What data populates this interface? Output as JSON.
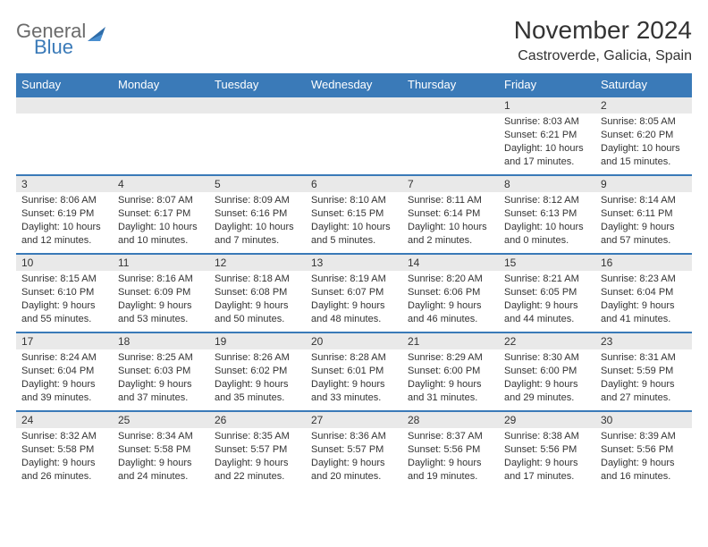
{
  "brand": {
    "word1": "General",
    "word2": "Blue"
  },
  "title": "November 2024",
  "location": "Castroverde, Galicia, Spain",
  "colors": {
    "header_bg": "#3a7ab8",
    "header_text": "#ffffff",
    "daynum_bg": "#e9e9e9",
    "border": "#3a7ab8",
    "text": "#333333",
    "logo_gray": "#6b6b6b",
    "logo_blue": "#3a7ab8",
    "page_bg": "#ffffff"
  },
  "typography": {
    "title_fontsize": 28,
    "location_fontsize": 16,
    "dayhead_fontsize": 13,
    "daynum_fontsize": 12,
    "body_fontsize": 11
  },
  "day_headers": [
    "Sunday",
    "Monday",
    "Tuesday",
    "Wednesday",
    "Thursday",
    "Friday",
    "Saturday"
  ],
  "weeks": [
    [
      {
        "n": "",
        "sunrise": "",
        "sunset": "",
        "daylight": ""
      },
      {
        "n": "",
        "sunrise": "",
        "sunset": "",
        "daylight": ""
      },
      {
        "n": "",
        "sunrise": "",
        "sunset": "",
        "daylight": ""
      },
      {
        "n": "",
        "sunrise": "",
        "sunset": "",
        "daylight": ""
      },
      {
        "n": "",
        "sunrise": "",
        "sunset": "",
        "daylight": ""
      },
      {
        "n": "1",
        "sunrise": "Sunrise: 8:03 AM",
        "sunset": "Sunset: 6:21 PM",
        "daylight": "Daylight: 10 hours and 17 minutes."
      },
      {
        "n": "2",
        "sunrise": "Sunrise: 8:05 AM",
        "sunset": "Sunset: 6:20 PM",
        "daylight": "Daylight: 10 hours and 15 minutes."
      }
    ],
    [
      {
        "n": "3",
        "sunrise": "Sunrise: 8:06 AM",
        "sunset": "Sunset: 6:19 PM",
        "daylight": "Daylight: 10 hours and 12 minutes."
      },
      {
        "n": "4",
        "sunrise": "Sunrise: 8:07 AM",
        "sunset": "Sunset: 6:17 PM",
        "daylight": "Daylight: 10 hours and 10 minutes."
      },
      {
        "n": "5",
        "sunrise": "Sunrise: 8:09 AM",
        "sunset": "Sunset: 6:16 PM",
        "daylight": "Daylight: 10 hours and 7 minutes."
      },
      {
        "n": "6",
        "sunrise": "Sunrise: 8:10 AM",
        "sunset": "Sunset: 6:15 PM",
        "daylight": "Daylight: 10 hours and 5 minutes."
      },
      {
        "n": "7",
        "sunrise": "Sunrise: 8:11 AM",
        "sunset": "Sunset: 6:14 PM",
        "daylight": "Daylight: 10 hours and 2 minutes."
      },
      {
        "n": "8",
        "sunrise": "Sunrise: 8:12 AM",
        "sunset": "Sunset: 6:13 PM",
        "daylight": "Daylight: 10 hours and 0 minutes."
      },
      {
        "n": "9",
        "sunrise": "Sunrise: 8:14 AM",
        "sunset": "Sunset: 6:11 PM",
        "daylight": "Daylight: 9 hours and 57 minutes."
      }
    ],
    [
      {
        "n": "10",
        "sunrise": "Sunrise: 8:15 AM",
        "sunset": "Sunset: 6:10 PM",
        "daylight": "Daylight: 9 hours and 55 minutes."
      },
      {
        "n": "11",
        "sunrise": "Sunrise: 8:16 AM",
        "sunset": "Sunset: 6:09 PM",
        "daylight": "Daylight: 9 hours and 53 minutes."
      },
      {
        "n": "12",
        "sunrise": "Sunrise: 8:18 AM",
        "sunset": "Sunset: 6:08 PM",
        "daylight": "Daylight: 9 hours and 50 minutes."
      },
      {
        "n": "13",
        "sunrise": "Sunrise: 8:19 AM",
        "sunset": "Sunset: 6:07 PM",
        "daylight": "Daylight: 9 hours and 48 minutes."
      },
      {
        "n": "14",
        "sunrise": "Sunrise: 8:20 AM",
        "sunset": "Sunset: 6:06 PM",
        "daylight": "Daylight: 9 hours and 46 minutes."
      },
      {
        "n": "15",
        "sunrise": "Sunrise: 8:21 AM",
        "sunset": "Sunset: 6:05 PM",
        "daylight": "Daylight: 9 hours and 44 minutes."
      },
      {
        "n": "16",
        "sunrise": "Sunrise: 8:23 AM",
        "sunset": "Sunset: 6:04 PM",
        "daylight": "Daylight: 9 hours and 41 minutes."
      }
    ],
    [
      {
        "n": "17",
        "sunrise": "Sunrise: 8:24 AM",
        "sunset": "Sunset: 6:04 PM",
        "daylight": "Daylight: 9 hours and 39 minutes."
      },
      {
        "n": "18",
        "sunrise": "Sunrise: 8:25 AM",
        "sunset": "Sunset: 6:03 PM",
        "daylight": "Daylight: 9 hours and 37 minutes."
      },
      {
        "n": "19",
        "sunrise": "Sunrise: 8:26 AM",
        "sunset": "Sunset: 6:02 PM",
        "daylight": "Daylight: 9 hours and 35 minutes."
      },
      {
        "n": "20",
        "sunrise": "Sunrise: 8:28 AM",
        "sunset": "Sunset: 6:01 PM",
        "daylight": "Daylight: 9 hours and 33 minutes."
      },
      {
        "n": "21",
        "sunrise": "Sunrise: 8:29 AM",
        "sunset": "Sunset: 6:00 PM",
        "daylight": "Daylight: 9 hours and 31 minutes."
      },
      {
        "n": "22",
        "sunrise": "Sunrise: 8:30 AM",
        "sunset": "Sunset: 6:00 PM",
        "daylight": "Daylight: 9 hours and 29 minutes."
      },
      {
        "n": "23",
        "sunrise": "Sunrise: 8:31 AM",
        "sunset": "Sunset: 5:59 PM",
        "daylight": "Daylight: 9 hours and 27 minutes."
      }
    ],
    [
      {
        "n": "24",
        "sunrise": "Sunrise: 8:32 AM",
        "sunset": "Sunset: 5:58 PM",
        "daylight": "Daylight: 9 hours and 26 minutes."
      },
      {
        "n": "25",
        "sunrise": "Sunrise: 8:34 AM",
        "sunset": "Sunset: 5:58 PM",
        "daylight": "Daylight: 9 hours and 24 minutes."
      },
      {
        "n": "26",
        "sunrise": "Sunrise: 8:35 AM",
        "sunset": "Sunset: 5:57 PM",
        "daylight": "Daylight: 9 hours and 22 minutes."
      },
      {
        "n": "27",
        "sunrise": "Sunrise: 8:36 AM",
        "sunset": "Sunset: 5:57 PM",
        "daylight": "Daylight: 9 hours and 20 minutes."
      },
      {
        "n": "28",
        "sunrise": "Sunrise: 8:37 AM",
        "sunset": "Sunset: 5:56 PM",
        "daylight": "Daylight: 9 hours and 19 minutes."
      },
      {
        "n": "29",
        "sunrise": "Sunrise: 8:38 AM",
        "sunset": "Sunset: 5:56 PM",
        "daylight": "Daylight: 9 hours and 17 minutes."
      },
      {
        "n": "30",
        "sunrise": "Sunrise: 8:39 AM",
        "sunset": "Sunset: 5:56 PM",
        "daylight": "Daylight: 9 hours and 16 minutes."
      }
    ]
  ]
}
